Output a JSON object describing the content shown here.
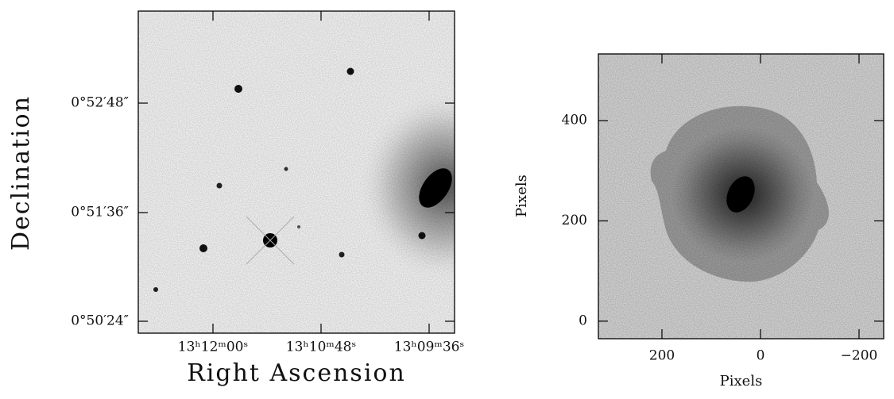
{
  "chart_data": [
    {
      "type": "image",
      "xlabel": "Right Ascension",
      "ylabel": "Declination",
      "xtick_labels": [
        "13ʰ12ᵐ00ˢ",
        "13ʰ10ᵐ48ˢ",
        "13ʰ09ᵐ36ˢ"
      ],
      "ytick_labels": [
        "0°52′48″",
        "0°51′36″",
        "0°50′24″"
      ]
    },
    {
      "type": "image",
      "xlabel": "Pixels",
      "ylabel": "Pixels",
      "xlim": [
        329,
        -250
      ],
      "ylim": [
        -35,
        533
      ],
      "xticks": [
        200,
        0,
        {
          "value": -200,
          "label": "−200"
        }
      ],
      "yticks": [
        0,
        200,
        400
      ]
    }
  ]
}
